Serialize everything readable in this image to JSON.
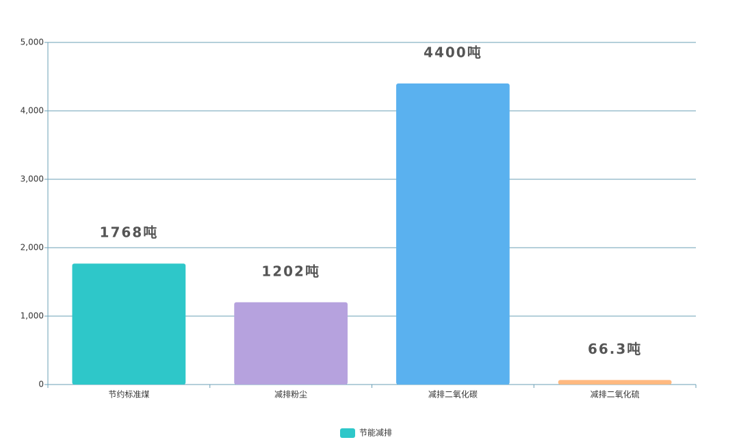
{
  "chart_data": {
    "type": "bar",
    "categories": [
      "节约标准煤",
      "减排粉尘",
      "减排二氧化碳",
      "减排二氧化硫"
    ],
    "series": [
      {
        "name": "节能减排",
        "color": "#2ec7c9",
        "colors": [
          "#2ec7c9",
          "#b6a2de",
          "#5ab1ef",
          "#ffb980"
        ],
        "values": [
          1768,
          1202,
          4400,
          66.3
        ],
        "value_labels": [
          "1768吨",
          "1202吨",
          "4400吨",
          "66.3吨"
        ]
      }
    ],
    "ylim": [
      0,
      5000
    ],
    "yticks": [
      0,
      {
        "value": 1000,
        "label": "1,000"
      },
      {
        "value": 2000,
        "label": "2,000"
      },
      {
        "value": 3000,
        "label": "3,000"
      },
      {
        "value": 4000,
        "label": "4,000"
      },
      {
        "value": 5000,
        "label": "5,000"
      }
    ],
    "grid": true,
    "legend": "bottom"
  }
}
